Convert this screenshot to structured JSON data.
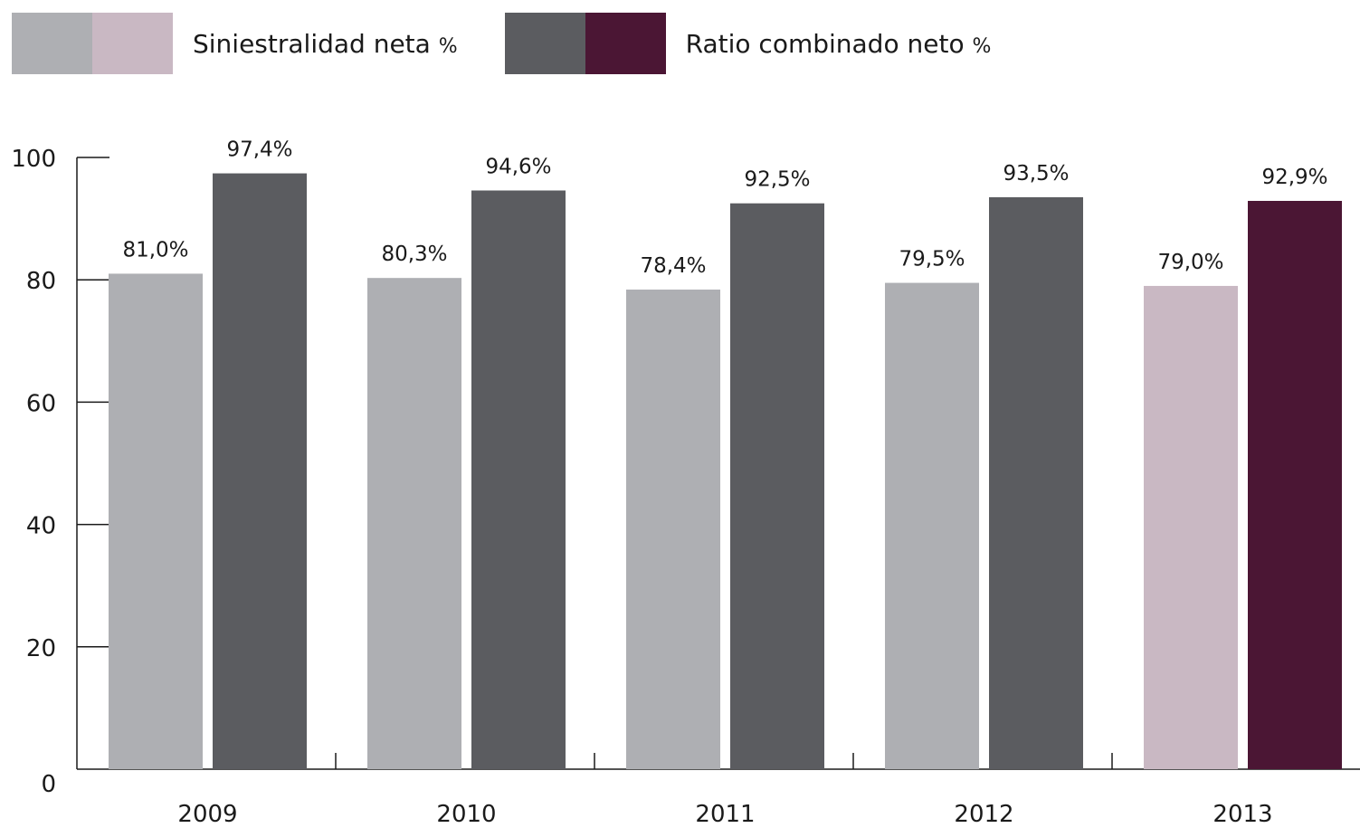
{
  "chart_data": {
    "type": "bar",
    "categories": [
      "2009",
      "2010",
      "2011",
      "2012",
      "2013"
    ],
    "series": [
      {
        "name": "Siniestralidad neta %",
        "name_text": "Siniestralidad neta",
        "name_unit": "%",
        "values": [
          81.0,
          80.3,
          78.4,
          79.5,
          79.0
        ],
        "labels": [
          "81,0%",
          "80,3%",
          "78,4%",
          "79,5%",
          "79,0%"
        ],
        "color": "#aeafb3",
        "highlight_color": "#c9b8c3"
      },
      {
        "name": "Ratio combinado neto %",
        "name_text": "Ratio combinado neto",
        "name_unit": "%",
        "values": [
          97.4,
          94.6,
          92.5,
          93.5,
          92.9
        ],
        "labels": [
          "97,4%",
          "94,6%",
          "92,5%",
          "93,5%",
          "92,9%"
        ],
        "color": "#5b5c60",
        "highlight_color": "#4b1634"
      }
    ],
    "highlight_category": "2013",
    "ylim": [
      0,
      100
    ],
    "yticks": [
      0,
      20,
      40,
      60,
      80,
      100
    ],
    "ytick_labels": [
      "0",
      "20",
      "40",
      "60",
      "80",
      "100"
    ],
    "grid": false,
    "legend_position": "top-left"
  }
}
